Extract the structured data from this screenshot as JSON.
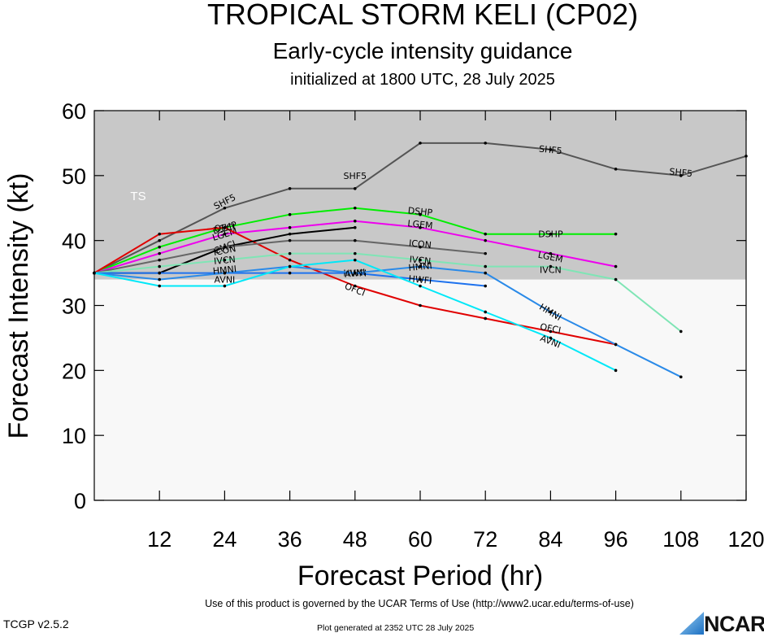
{
  "title": "TROPICAL STORM KELI (CP02)",
  "subtitle": "Early-cycle intensity guidance",
  "init_line": "initialized at 1800 UTC, 28 July 2025",
  "footer": {
    "terms": "Use of this product is governed by the UCAR Terms of Use (http://www2.ucar.edu/terms-of-use)",
    "version": "TCGP v2.5.2",
    "generated": "Plot generated at 2352 UTC   28 July 2025",
    "logo": "NCAR"
  },
  "colors": {
    "ts_band": "#c8c8c8",
    "below_band": "#f8f8f8"
  },
  "chart_data": {
    "type": "line",
    "xlabel": "Forecast Period (hr)",
    "ylabel": "Forecast Intensity (kt)",
    "xlim": [
      0,
      120
    ],
    "ylim": [
      0,
      60
    ],
    "xticks": [
      12,
      24,
      36,
      48,
      60,
      72,
      84,
      96,
      108,
      120
    ],
    "yticks": [
      0,
      10,
      20,
      30,
      40,
      50,
      60
    ],
    "grid": false,
    "bands": [
      {
        "label": "TS",
        "from": 34,
        "to": 64,
        "color": "#c8c8c8"
      }
    ],
    "series": [
      {
        "name": "SHF5",
        "color": "#555555",
        "points": [
          [
            0,
            35
          ],
          [
            12,
            40
          ],
          [
            24,
            45
          ],
          [
            36,
            48
          ],
          [
            48,
            48
          ],
          [
            60,
            55
          ],
          [
            72,
            55
          ],
          [
            84,
            54
          ],
          [
            96,
            51
          ],
          [
            108,
            50
          ],
          [
            120,
            53
          ]
        ],
        "labels": [
          [
            24,
            46
          ],
          [
            48,
            50
          ],
          [
            84,
            54
          ],
          [
            108,
            50.5
          ]
        ]
      },
      {
        "name": "DSHP",
        "color": "#00ee00",
        "points": [
          [
            0,
            35
          ],
          [
            12,
            39
          ],
          [
            24,
            42
          ],
          [
            36,
            44
          ],
          [
            48,
            45
          ],
          [
            60,
            44
          ],
          [
            72,
            41
          ],
          [
            84,
            41
          ],
          [
            96,
            41
          ]
        ],
        "labels": [
          [
            24,
            42
          ],
          [
            60,
            44.5
          ],
          [
            84,
            41
          ]
        ]
      },
      {
        "name": "LGEM",
        "color": "#ee00ee",
        "points": [
          [
            0,
            35
          ],
          [
            12,
            38
          ],
          [
            24,
            41
          ],
          [
            36,
            42
          ],
          [
            48,
            43
          ],
          [
            60,
            42
          ],
          [
            72,
            40
          ],
          [
            84,
            38
          ],
          [
            96,
            36
          ]
        ],
        "labels": [
          [
            24,
            41
          ],
          [
            60,
            42.5
          ],
          [
            84,
            37.5
          ]
        ]
      },
      {
        "name": "OFCI",
        "color": "#e00000",
        "points": [
          [
            0,
            35
          ],
          [
            12,
            41
          ],
          [
            24,
            42
          ],
          [
            36,
            37
          ],
          [
            48,
            33
          ],
          [
            60,
            30
          ],
          [
            72,
            28
          ],
          [
            84,
            26
          ],
          [
            96,
            24
          ]
        ],
        "labels": [
          [
            24,
            42
          ],
          [
            48,
            32.5
          ],
          [
            84,
            26.5
          ]
        ]
      },
      {
        "name": "CMCI",
        "color": "#000000",
        "points": [
          [
            0,
            35
          ],
          [
            12,
            35
          ],
          [
            24,
            39
          ],
          [
            36,
            41
          ],
          [
            48,
            42
          ]
        ],
        "labels": [
          [
            24,
            39
          ]
        ]
      },
      {
        "name": "ICON",
        "color": "#666666",
        "points": [
          [
            0,
            35
          ],
          [
            12,
            37
          ],
          [
            24,
            39
          ],
          [
            36,
            40
          ],
          [
            48,
            40
          ],
          [
            60,
            39
          ],
          [
            72,
            38
          ]
        ],
        "labels": [
          [
            24,
            38.5
          ],
          [
            60,
            39.5
          ]
        ]
      },
      {
        "name": "IVCN",
        "color": "#7fe5b5",
        "points": [
          [
            0,
            35
          ],
          [
            12,
            36
          ],
          [
            24,
            37
          ],
          [
            36,
            38
          ],
          [
            48,
            38
          ],
          [
            60,
            37
          ],
          [
            72,
            36
          ],
          [
            84,
            36
          ],
          [
            96,
            34
          ],
          [
            108,
            26
          ]
        ],
        "labels": [
          [
            24,
            37
          ],
          [
            60,
            37
          ],
          [
            84,
            35.5
          ]
        ]
      },
      {
        "name": "HWFI",
        "color": "#1e72ee",
        "points": [
          [
            0,
            35
          ],
          [
            12,
            35
          ],
          [
            24,
            35
          ],
          [
            36,
            35
          ],
          [
            48,
            35
          ],
          [
            60,
            34
          ],
          [
            72,
            33
          ]
        ],
        "labels": [
          [
            48,
            35
          ],
          [
            60,
            34
          ]
        ]
      },
      {
        "name": "HMNI",
        "color": "#2a8ae8",
        "points": [
          [
            0,
            35
          ],
          [
            12,
            34
          ],
          [
            24,
            35
          ],
          [
            36,
            36
          ],
          [
            48,
            35
          ],
          [
            60,
            36
          ],
          [
            72,
            35
          ],
          [
            84,
            29
          ],
          [
            96,
            24
          ],
          [
            108,
            19
          ]
        ],
        "labels": [
          [
            24,
            35.5
          ],
          [
            60,
            36
          ],
          [
            84,
            29
          ]
        ]
      },
      {
        "name": "AVNI",
        "color": "#00e8f8",
        "points": [
          [
            0,
            35
          ],
          [
            12,
            33
          ],
          [
            24,
            33
          ],
          [
            36,
            36
          ],
          [
            48,
            37
          ],
          [
            60,
            33
          ],
          [
            72,
            29
          ],
          [
            84,
            25
          ],
          [
            96,
            20
          ]
        ],
        "labels": [
          [
            24,
            34
          ],
          [
            48,
            35
          ],
          [
            84,
            24.5
          ]
        ]
      }
    ]
  }
}
